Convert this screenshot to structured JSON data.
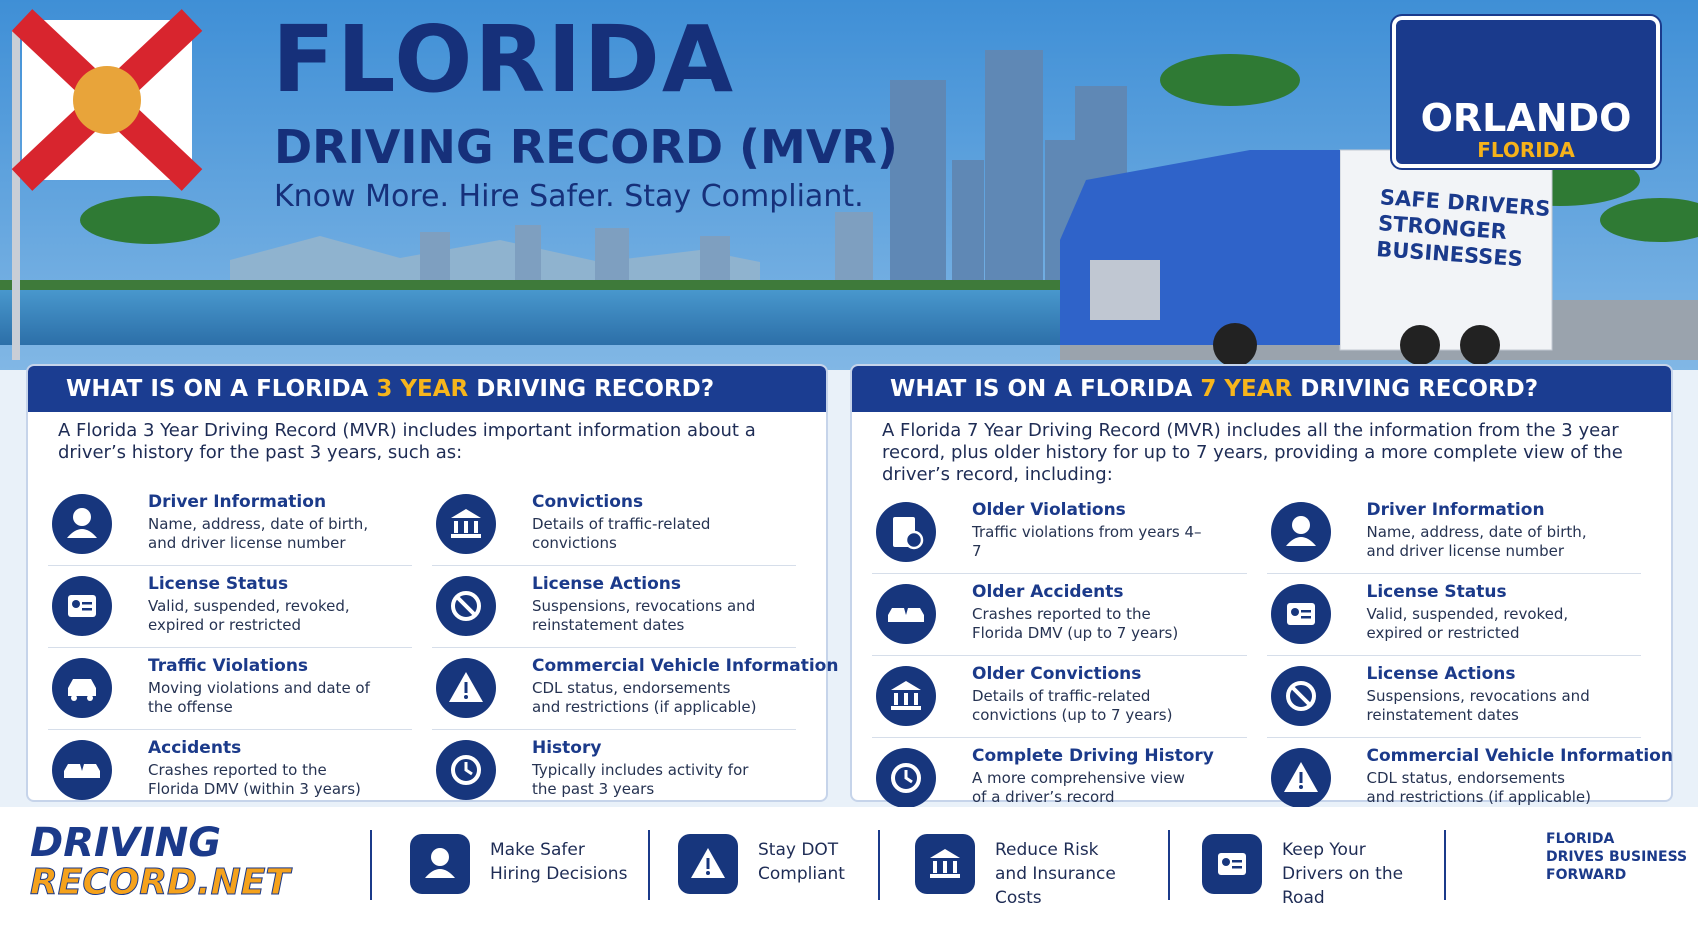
{
  "header": {
    "title": "FLORIDA",
    "subtitle": "DRIVING RECORD (MVR)",
    "tagline": "Know More. Hire Safer. Stay Compliant."
  },
  "sign": {
    "city": "ORLANDO",
    "state": "FLORIDA"
  },
  "truck": {
    "lines": [
      "SAFE DRIVERS",
      "STRONGER",
      "BUSINESSES"
    ]
  },
  "panels": [
    {
      "heading": {
        "before": "WHAT IS ON A FLORIDA ",
        "highlight": "3 YEAR",
        "after": " DRIVING RECORD?"
      },
      "intro": "A Florida 3 Year Driving Record (MVR) includes important information about a driver’s history for the past 3 years, such as:",
      "items": [
        {
          "title": "Driver Information",
          "description": "Name, address, date of birth, and driver license number"
        },
        {
          "title": "License Status",
          "description": "Valid, suspended, revoked, expired or restricted"
        },
        {
          "title": "Traffic Violations",
          "description": "Moving violations and date of the offense"
        },
        {
          "title": "Accidents",
          "description": "Crashes reported to the Florida DMV (within 3 years)"
        },
        {
          "title": "Convictions",
          "description": "Details of traffic-related convictions"
        },
        {
          "title": "License Actions",
          "description": "Suspensions, revocations and reinstatement dates"
        },
        {
          "title": "Commercial Vehicle Information",
          "description": "CDL status, endorsements and restrictions (if applicable)"
        },
        {
          "title": "History",
          "description": "Typically includes activity for the past 3 years"
        }
      ]
    },
    {
      "heading": {
        "before": "WHAT IS ON A FLORIDA ",
        "highlight": "7 YEAR",
        "after": " DRIVING RECORD?"
      },
      "intro": "A Florida 7 Year Driving Record (MVR) includes all the information from the 3 year record, plus older history for up to 7 years, providing a more complete view of the driver’s record, including:",
      "items": [
        {
          "title": "Older Violations",
          "description": "Traffic violations from years 4–7"
        },
        {
          "title": "Older Accidents",
          "description": "Crashes reported to the Florida DMV (up to 7 years)"
        },
        {
          "title": "Older Convictions",
          "description": "Details of traffic-related convictions (up to 7 years)"
        },
        {
          "title": "Complete Driving History",
          "description": "A more comprehensive view of a driver’s record"
        },
        {
          "title": "Driver Information",
          "description": "Name, address, date of birth, and driver license number"
        },
        {
          "title": "License Status",
          "description": "Valid, suspended, revoked, expired or restricted"
        },
        {
          "title": "License Actions",
          "description": "Suspensions, revocations and reinstatement dates"
        },
        {
          "title": "Commercial Vehicle Information",
          "description": "CDL status, endorsements and restrictions (if applicable)"
        }
      ]
    }
  ],
  "footer": {
    "logo": {
      "top": "DRIVING",
      "bottom": "RECORD.NET"
    },
    "benefits": [
      "Make Safer Hiring Decisions",
      "Stay DOT Compliant",
      "Reduce Risk and Insurance Costs",
      "Keep Your Drivers on the Road"
    ],
    "tagline": [
      "FLORIDA",
      "DRIVES BUSINESS",
      "FORWARD"
    ]
  }
}
